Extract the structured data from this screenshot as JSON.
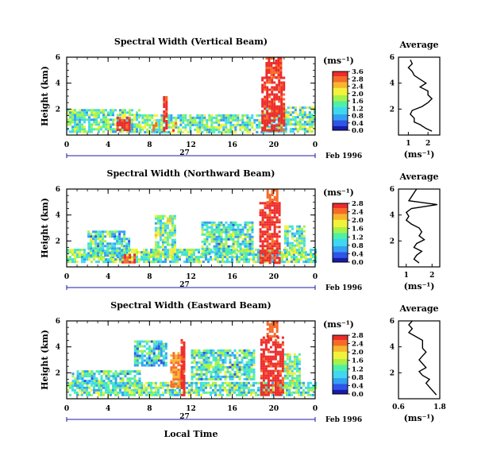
{
  "chart_data": [
    {
      "type": "heatmap",
      "title": "Spectral Width (Vertical Beam)",
      "ylabel": "Height (km)",
      "x_ticks": [
        "0",
        "4",
        "8",
        "12",
        "16",
        "20",
        "0"
      ],
      "y_ticks": [
        "2",
        "4",
        "6"
      ],
      "day_label": "27",
      "date_label": "Feb 1996",
      "xlim": [
        0,
        24
      ],
      "ylim": [
        0,
        6
      ],
      "colorbar": {
        "unit": "(ms⁻¹)",
        "ticks": [
          "0.0",
          "0.4",
          "0.8",
          "1.2",
          "1.6",
          "2.0",
          "2.4",
          "2.8",
          "3.6"
        ],
        "range": [
          0,
          3.6
        ]
      },
      "regions": [
        {
          "t0": 0,
          "t1": 7,
          "h0": 0.3,
          "h1": 2.0,
          "level": 0.45
        },
        {
          "t0": 7,
          "t1": 19,
          "h0": 0.3,
          "h1": 1.6,
          "level": 0.45
        },
        {
          "t0": 19,
          "t1": 24,
          "h0": 0.3,
          "h1": 2.2,
          "level": 0.45
        },
        {
          "t0": 4.8,
          "t1": 6.0,
          "h0": 0.3,
          "h1": 1.4,
          "level": 0.98
        },
        {
          "t0": 8.3,
          "t1": 8.7,
          "h0": 0.3,
          "h1": 1.0,
          "level": 0.9
        },
        {
          "t0": 9.3,
          "t1": 9.6,
          "h0": 0.3,
          "h1": 3.0,
          "level": 0.96
        },
        {
          "t0": 10.2,
          "t1": 10.5,
          "h0": 0.3,
          "h1": 1.0,
          "level": 0.8
        },
        {
          "t0": 18.8,
          "t1": 21.0,
          "h0": 0.3,
          "h1": 4.5,
          "level": 0.98
        },
        {
          "t0": 19.2,
          "t1": 20.6,
          "h0": 4.5,
          "h1": 6.0,
          "level": 0.96
        }
      ],
      "profile": {
        "title": "Average",
        "xlabel": "(ms⁻¹)",
        "x_ticks": [
          "1",
          "2"
        ],
        "xlim": [
          0.5,
          2.6
        ],
        "y_ticks": [
          "2",
          "4",
          "6"
        ],
        "heights": [
          0.3,
          0.5,
          0.8,
          1.0,
          1.3,
          1.6,
          1.9,
          2.2,
          2.5,
          2.8,
          3.1,
          3.4,
          3.7,
          4.0,
          4.3,
          4.6,
          4.9,
          5.2,
          5.5,
          5.8
        ],
        "values": [
          2.2,
          1.9,
          1.6,
          1.3,
          1.3,
          1.1,
          1.2,
          1.7,
          2.0,
          2.2,
          2.0,
          2.0,
          1.6,
          1.9,
          1.6,
          1.3,
          1.2,
          1.0,
          1.2,
          1.1
        ]
      }
    },
    {
      "type": "heatmap",
      "title": "Spectral Width (Northward Beam)",
      "ylabel": "Height (km)",
      "x_ticks": [
        "0",
        "4",
        "8",
        "12",
        "16",
        "20",
        "0"
      ],
      "y_ticks": [
        "2",
        "4",
        "6"
      ],
      "day_label": "27",
      "date_label": "Feb 1996",
      "xlim": [
        0,
        24
      ],
      "ylim": [
        0,
        6
      ],
      "colorbar": {
        "unit": "(ms⁻¹)",
        "ticks": [
          "0.0",
          "0.4",
          "0.8",
          "1.2",
          "1.6",
          "2.0",
          "2.4",
          "2.8"
        ],
        "range": [
          0,
          2.8
        ]
      },
      "regions": [
        {
          "t0": 0,
          "t1": 24,
          "h0": 0.3,
          "h1": 1.4,
          "level": 0.45
        },
        {
          "t0": 2,
          "t1": 6,
          "h0": 0.8,
          "h1": 2.8,
          "level": 0.4
        },
        {
          "t0": 5.3,
          "t1": 6.6,
          "h0": 0.3,
          "h1": 1.0,
          "level": 0.96
        },
        {
          "t0": 8.5,
          "t1": 10.5,
          "h0": 0.8,
          "h1": 4.0,
          "level": 0.5
        },
        {
          "t0": 13,
          "t1": 18,
          "h0": 1.0,
          "h1": 3.5,
          "level": 0.4
        },
        {
          "t0": 18.6,
          "t1": 20.6,
          "h0": 0.3,
          "h1": 5.0,
          "level": 0.98
        },
        {
          "t0": 19.3,
          "t1": 20.3,
          "h0": 5.0,
          "h1": 6.0,
          "level": 0.9
        },
        {
          "t0": 21,
          "t1": 23,
          "h0": 1.0,
          "h1": 3.2,
          "level": 0.45
        }
      ],
      "profile": {
        "title": "Average",
        "xlabel": "(ms⁻¹)",
        "x_ticks": [
          "1",
          "2"
        ],
        "xlim": [
          0.7,
          2.3
        ],
        "y_ticks": [
          "2",
          "4",
          "6"
        ],
        "heights": [
          0.3,
          0.6,
          0.9,
          1.2,
          1.5,
          1.8,
          2.1,
          2.4,
          2.7,
          3.0,
          3.3,
          3.6,
          3.9,
          4.2,
          4.5,
          4.8,
          5.1,
          5.4,
          5.7,
          6.0
        ],
        "values": [
          1.5,
          1.3,
          1.4,
          1.6,
          1.3,
          1.4,
          1.7,
          1.5,
          1.6,
          1.5,
          1.2,
          1.0,
          1.1,
          1.0,
          1.2,
          2.2,
          1.1,
          1.2,
          1.3,
          1.4
        ]
      }
    },
    {
      "type": "heatmap",
      "title": "Spectral Width (Eastward Beam)",
      "ylabel": "Height (km)",
      "xlabel": "Local Time",
      "x_ticks": [
        "0",
        "4",
        "8",
        "12",
        "16",
        "20",
        "0"
      ],
      "y_ticks": [
        "2",
        "4",
        "6"
      ],
      "day_label": "27",
      "date_label": "Feb 1996",
      "xlim": [
        0,
        24
      ],
      "ylim": [
        0,
        6
      ],
      "colorbar": {
        "unit": "(ms⁻¹)",
        "ticks": [
          "0.0",
          "0.4",
          "0.8",
          "1.2",
          "1.6",
          "2.0",
          "2.4",
          "2.8"
        ],
        "range": [
          0,
          2.8
        ]
      },
      "regions": [
        {
          "t0": 0,
          "t1": 24,
          "h0": 0.3,
          "h1": 1.3,
          "level": 0.45
        },
        {
          "t0": 0.5,
          "t1": 7,
          "h0": 1.0,
          "h1": 2.2,
          "level": 0.4
        },
        {
          "t0": 6.5,
          "t1": 9.5,
          "h0": 2.5,
          "h1": 4.5,
          "level": 0.35
        },
        {
          "t0": 10,
          "t1": 11.2,
          "h0": 1.0,
          "h1": 3.6,
          "level": 0.85
        },
        {
          "t0": 11.0,
          "t1": 11.3,
          "h0": 0.3,
          "h1": 4.6,
          "level": 0.97
        },
        {
          "t0": 12,
          "t1": 18,
          "h0": 1.5,
          "h1": 3.8,
          "level": 0.4
        },
        {
          "t0": 18.7,
          "t1": 21.0,
          "h0": 0.3,
          "h1": 4.8,
          "level": 0.98
        },
        {
          "t0": 19.3,
          "t1": 20.3,
          "h0": 4.8,
          "h1": 6.0,
          "level": 0.9
        },
        {
          "t0": 21,
          "t1": 22.5,
          "h0": 1.0,
          "h1": 3.5,
          "level": 0.5
        }
      ],
      "profile": {
        "title": "Average",
        "xlabel": "(ms⁻¹)",
        "x_ticks": [
          "0.6",
          "1.8"
        ],
        "xlim": [
          0.6,
          1.8
        ],
        "y_ticks": [
          "2",
          "4",
          "6"
        ],
        "heights": [
          0.3,
          0.6,
          0.9,
          1.2,
          1.5,
          1.8,
          2.1,
          2.4,
          2.7,
          3.0,
          3.3,
          3.6,
          3.9,
          4.2,
          4.5,
          4.8,
          5.1,
          5.4,
          5.7,
          6.0
        ],
        "values": [
          1.7,
          1.6,
          1.5,
          1.4,
          1.5,
          1.3,
          1.2,
          1.4,
          1.3,
          1.2,
          1.3,
          1.4,
          1.3,
          1.3,
          1.3,
          1.1,
          0.9,
          1.0,
          0.9,
          1.0
        ]
      }
    }
  ]
}
